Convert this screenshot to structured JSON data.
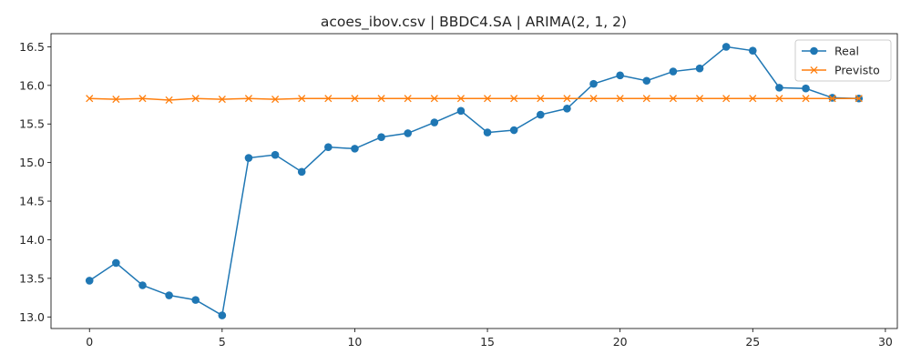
{
  "chart_data": {
    "type": "line",
    "title": "acoes_ibov.csv | BBDC4.SA | ARIMA(2, 1, 2)",
    "xlabel": "",
    "ylabel": "",
    "xlim": [
      -1.45,
      30.45
    ],
    "ylim": [
      12.85,
      16.67
    ],
    "x_ticks": [
      0,
      5,
      10,
      15,
      20,
      25,
      30
    ],
    "x_tick_labels": [
      "0",
      "5",
      "10",
      "15",
      "20",
      "25",
      "30"
    ],
    "y_ticks": [
      13.0,
      13.5,
      14.0,
      14.5,
      15.0,
      15.5,
      16.0,
      16.5
    ],
    "y_tick_labels": [
      "13.0",
      "13.5",
      "14.0",
      "14.5",
      "15.0",
      "15.5",
      "16.0",
      "16.5"
    ],
    "grid": false,
    "legend_position": "top-right",
    "x": [
      0,
      1,
      2,
      3,
      4,
      5,
      6,
      7,
      8,
      9,
      10,
      11,
      12,
      13,
      14,
      15,
      16,
      17,
      18,
      19,
      20,
      21,
      22,
      23,
      24,
      25,
      26,
      27,
      28,
      29
    ],
    "series": [
      {
        "name": "Real",
        "color": "#1f77b4",
        "marker": "circle",
        "values": [
          13.47,
          13.7,
          13.41,
          13.28,
          13.22,
          13.02,
          15.06,
          15.1,
          14.88,
          15.2,
          15.18,
          15.33,
          15.38,
          15.52,
          15.67,
          15.39,
          15.42,
          15.62,
          15.7,
          16.02,
          16.13,
          16.06,
          16.18,
          16.22,
          16.5,
          16.45,
          15.97,
          15.96,
          15.84,
          15.83
        ]
      },
      {
        "name": "Previsto",
        "color": "#ff7f0e",
        "marker": "x",
        "values": [
          15.83,
          15.82,
          15.83,
          15.81,
          15.83,
          15.82,
          15.83,
          15.82,
          15.83,
          15.83,
          15.83,
          15.83,
          15.83,
          15.83,
          15.83,
          15.83,
          15.83,
          15.83,
          15.83,
          15.83,
          15.83,
          15.83,
          15.83,
          15.83,
          15.83,
          15.83,
          15.83,
          15.83,
          15.83,
          15.83
        ]
      }
    ]
  }
}
